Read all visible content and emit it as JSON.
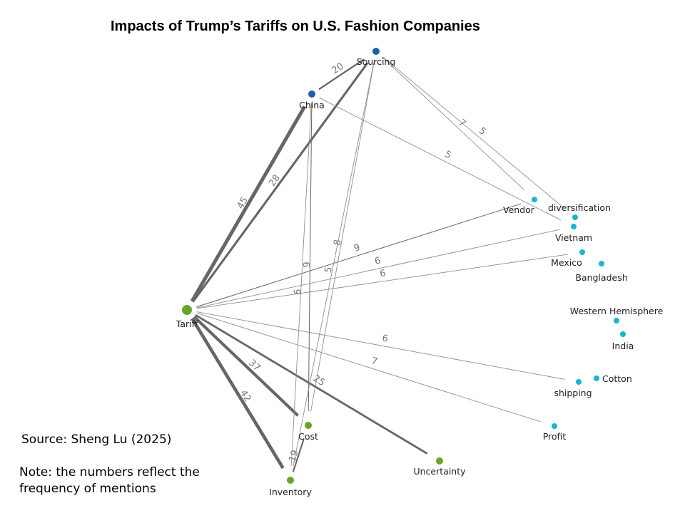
{
  "title": "Impacts of Trump’s Tariffs on U.S. Fashion Companies",
  "source": "Source: Sheng Lu (2025)",
  "note": "Note: the numbers reflect the frequency of mentions",
  "colors": {
    "blue": "#1f5fa6",
    "green": "#6aa329",
    "cyan": "#1bb5c9",
    "edge": "#666666"
  },
  "nodes": [
    {
      "id": "Sourcing",
      "label": "Sourcing",
      "group": "blue"
    },
    {
      "id": "China",
      "label": "China",
      "group": "blue"
    },
    {
      "id": "Tariff",
      "label": "Tariff",
      "group": "green"
    },
    {
      "id": "Cost",
      "label": "Cost",
      "group": "green"
    },
    {
      "id": "Inventory",
      "label": "Inventory",
      "group": "green"
    },
    {
      "id": "Uncertainty",
      "label": "Uncertainty",
      "group": "green"
    },
    {
      "id": "Vendor",
      "label": "Vendor",
      "group": "cyan"
    },
    {
      "id": "diversification",
      "label": "diversification",
      "group": "cyan"
    },
    {
      "id": "Vietnam",
      "label": "Vietnam",
      "group": "cyan"
    },
    {
      "id": "Mexico",
      "label": "Mexico",
      "group": "cyan"
    },
    {
      "id": "Bangladesh",
      "label": "Bangladesh",
      "group": "cyan"
    },
    {
      "id": "Western Hemisphere",
      "label": "Western Hemisphere",
      "group": "cyan"
    },
    {
      "id": "India",
      "label": "India",
      "group": "cyan"
    },
    {
      "id": "shipping",
      "label": "shipping",
      "group": "cyan"
    },
    {
      "id": "Cotton",
      "label": "Cotton",
      "group": "cyan"
    },
    {
      "id": "Profit",
      "label": "Profit",
      "group": "cyan"
    }
  ],
  "edges": [
    {
      "source": "China",
      "target": "Sourcing",
      "weight": 20
    },
    {
      "source": "Tariff",
      "target": "China",
      "weight": 45
    },
    {
      "source": "Tariff",
      "target": "Sourcing",
      "weight": 28
    },
    {
      "source": "Tariff",
      "target": "Vendor",
      "weight": 9
    },
    {
      "source": "Tariff",
      "target": "Vietnam",
      "weight": 6
    },
    {
      "source": "Tariff",
      "target": "Mexico",
      "weight": 6
    },
    {
      "source": "Tariff",
      "target": "shipping",
      "weight": 6
    },
    {
      "source": "Tariff",
      "target": "Profit",
      "weight": 7
    },
    {
      "source": "Tariff",
      "target": "Cost",
      "weight": 37
    },
    {
      "source": "Tariff",
      "target": "Inventory",
      "weight": 42
    },
    {
      "source": "Tariff",
      "target": "Uncertainty",
      "weight": 25
    },
    {
      "source": "Inventory",
      "target": "Cost",
      "weight": 19
    },
    {
      "source": "China",
      "target": "Cost",
      "weight": 9
    },
    {
      "source": "China",
      "target": "Inventory",
      "weight": 6
    },
    {
      "source": "Sourcing",
      "target": "Cost",
      "weight": 8
    },
    {
      "source": "Sourcing",
      "target": "Inventory",
      "weight": 5
    },
    {
      "source": "China",
      "target": "Vietnam",
      "weight": 5
    },
    {
      "source": "Sourcing",
      "target": "Vendor",
      "weight": 7
    },
    {
      "source": "Sourcing",
      "target": "diversification",
      "weight": 5
    }
  ]
}
